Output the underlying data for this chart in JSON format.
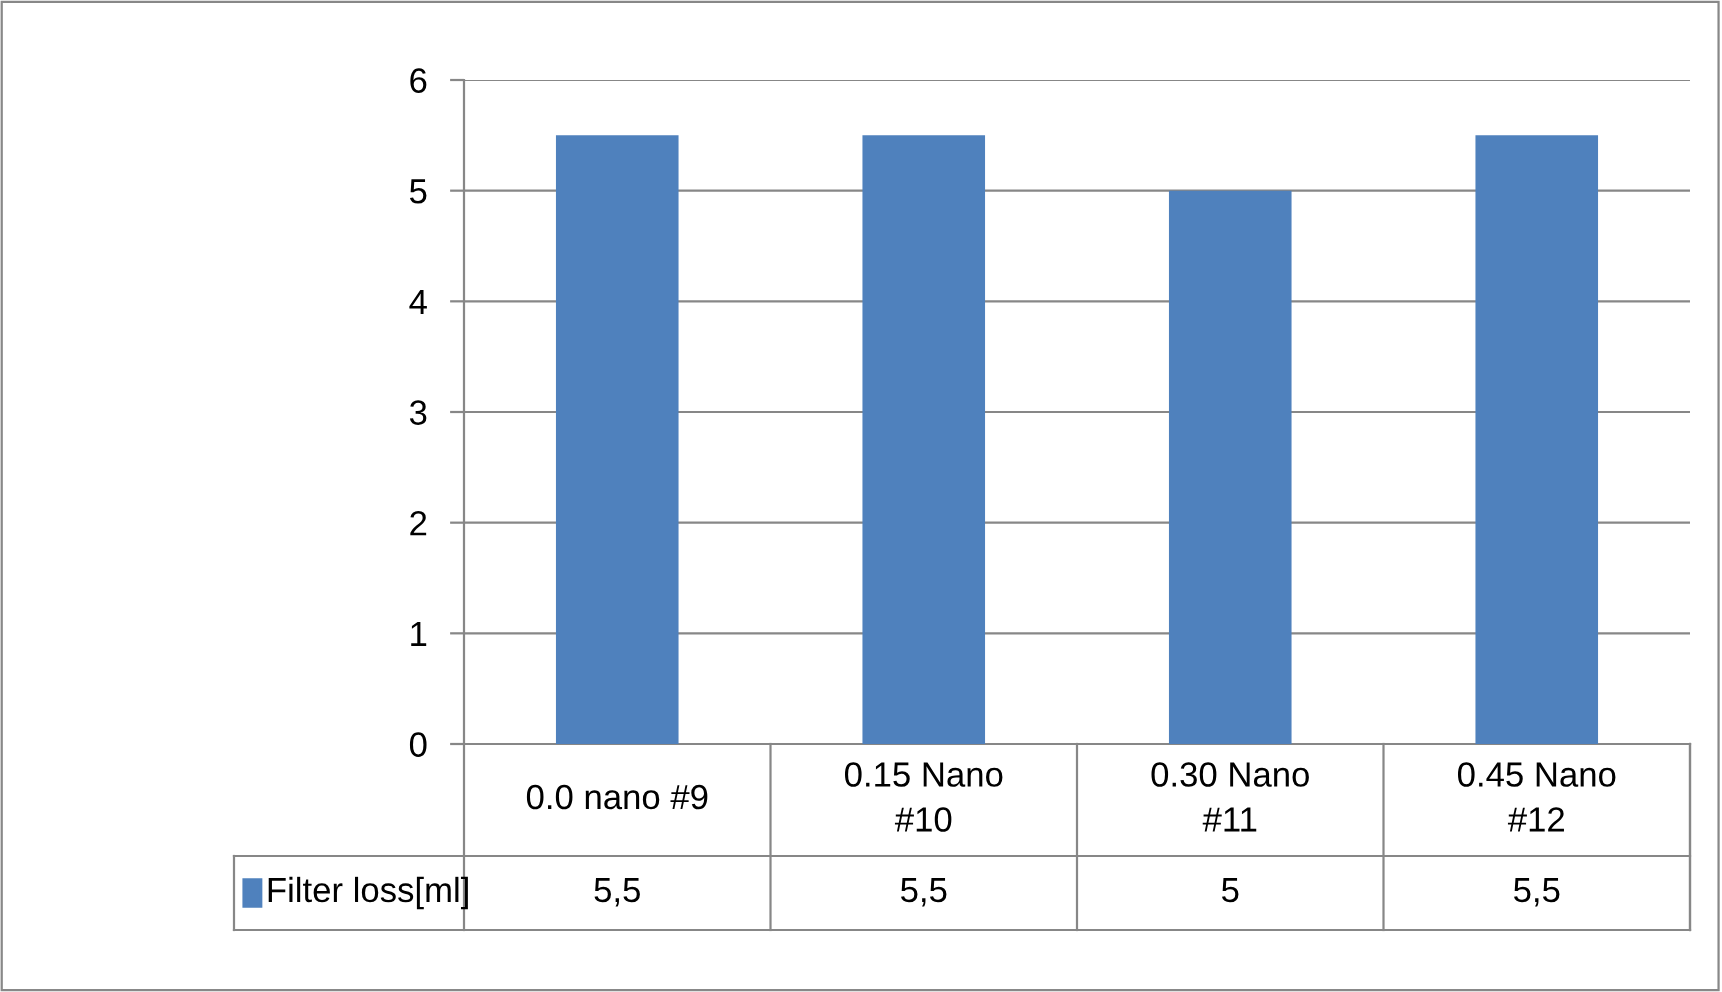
{
  "chart_data": {
    "type": "bar",
    "categories": [
      "0.0 nano #9",
      "0.15 Nano #10",
      "0.30 Nano #11",
      "0.45 Nano #12"
    ],
    "series": [
      {
        "name": "Filter loss[ml]",
        "color": "#4f81bd",
        "values": [
          5.5,
          5.5,
          5,
          5.5
        ],
        "value_labels": [
          "5,5",
          "5,5",
          "5",
          "5,5"
        ]
      }
    ],
    "ylim": [
      0,
      6
    ],
    "yticks": [
      0,
      1,
      2,
      3,
      4,
      5,
      6
    ],
    "grid": "y",
    "legend": "bottom"
  }
}
